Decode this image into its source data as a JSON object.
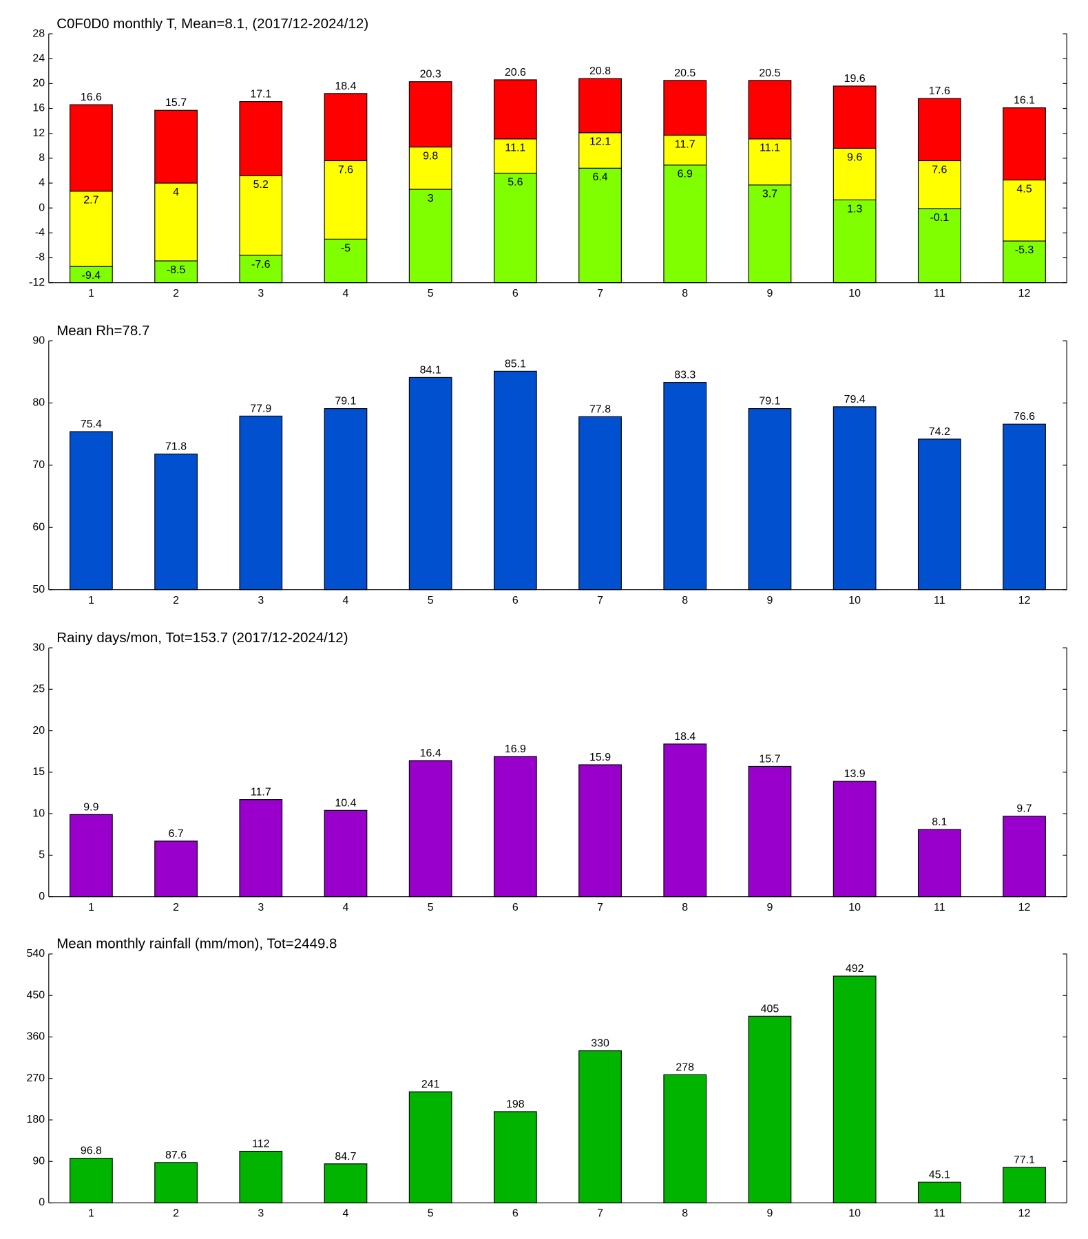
{
  "chart_data": [
    {
      "type": "floatingbar",
      "title": "C0F0D0 monthly T, Mean=8.1, (2017/12-2024/12)",
      "categories": [
        "1",
        "2",
        "3",
        "4",
        "5",
        "6",
        "7",
        "8",
        "9",
        "10",
        "11",
        "12"
      ],
      "series": [
        {
          "color": "#80ff00",
          "values": [
            -9.4,
            -8.5,
            -7.6,
            -5,
            3,
            5.6,
            6.4,
            6.9,
            3.7,
            1.3,
            -0.1,
            -5.3
          ]
        },
        {
          "color": "#ffff00",
          "values": [
            2.7,
            4,
            5.2,
            7.6,
            9.8,
            11.1,
            12.1,
            11.7,
            11.1,
            9.6,
            7.6,
            4.5
          ]
        },
        {
          "color": "#ff0000",
          "values": [
            16.6,
            15.7,
            17.1,
            18.4,
            20.3,
            20.6,
            20.8,
            20.5,
            20.5,
            19.6,
            17.6,
            16.1
          ]
        }
      ],
      "ylim": [
        -12,
        28
      ],
      "yticks": [
        -12,
        -8,
        -4,
        0,
        4,
        8,
        12,
        16,
        20,
        24,
        28
      ]
    },
    {
      "type": "bar",
      "title": "Mean Rh=78.7",
      "categories": [
        "1",
        "2",
        "3",
        "4",
        "5",
        "6",
        "7",
        "8",
        "9",
        "10",
        "11",
        "12"
      ],
      "values": [
        75.4,
        71.8,
        77.9,
        79.1,
        84.1,
        85.1,
        77.8,
        83.3,
        79.1,
        79.4,
        74.2,
        76.6
      ],
      "color": "#0050d0",
      "ylim": [
        50,
        90
      ],
      "yticks": [
        50,
        60,
        70,
        80,
        90
      ]
    },
    {
      "type": "bar",
      "title": "Rainy days/mon, Tot=153.7 (2017/12-2024/12)",
      "categories": [
        "1",
        "2",
        "3",
        "4",
        "5",
        "6",
        "7",
        "8",
        "9",
        "10",
        "11",
        "12"
      ],
      "values": [
        9.9,
        6.7,
        11.7,
        10.4,
        16.4,
        16.9,
        15.9,
        18.4,
        15.7,
        13.9,
        8.1,
        9.7
      ],
      "color": "#9900cc",
      "ylim": [
        0,
        30
      ],
      "yticks": [
        0,
        5,
        10,
        15,
        20,
        25,
        30
      ]
    },
    {
      "type": "bar",
      "title": "Mean monthly rainfall (mm/mon), Tot=2449.8",
      "categories": [
        "1",
        "2",
        "3",
        "4",
        "5",
        "6",
        "7",
        "8",
        "9",
        "10",
        "11",
        "12"
      ],
      "values": [
        96.8,
        87.6,
        112,
        84.7,
        241,
        198,
        330,
        278,
        405,
        492,
        45.1,
        77.1
      ],
      "color": "#00b400",
      "ylim": [
        0,
        540
      ],
      "yticks": [
        0,
        90,
        180,
        270,
        360,
        450,
        540
      ]
    }
  ]
}
